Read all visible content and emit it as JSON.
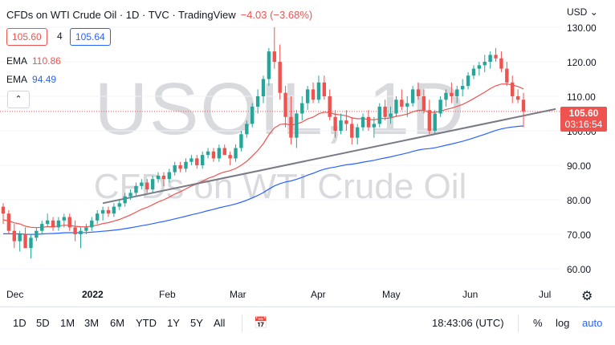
{
  "legend": {
    "title": "CFDs on WTI Crude Oil · 1D · TVC · TradingView",
    "change": "−4.03 (−3.68%)",
    "bid": "105.60",
    "spread": "4",
    "ask": "105.64",
    "ema1_label": "EMA",
    "ema1_value": "110.86",
    "ema2_label": "EMA",
    "ema2_value": "94.49",
    "collapse_icon": "chevron-up-icon"
  },
  "watermark": {
    "symbol": "USOIL, 1D",
    "description": "CFDs on WTI Crude Oil"
  },
  "price_scale": {
    "currency": "USD",
    "ticks": [
      "130.00",
      "120.00",
      "110.00",
      "100.00",
      "90.00",
      "80.00",
      "70.00",
      "60.00"
    ],
    "last_price": "105.60",
    "countdown": "03:16:54"
  },
  "time_scale": {
    "ticks": [
      "Dec",
      "2022",
      "Feb",
      "Mar",
      "Apr",
      "May",
      "Jun",
      "Jul"
    ]
  },
  "toolbar": {
    "timeframes": [
      "1D",
      "5D",
      "1M",
      "3M",
      "6M",
      "YTD",
      "1Y",
      "5Y",
      "All"
    ],
    "clock": "18:43:06 (UTC)",
    "percent": "%",
    "log": "log",
    "auto": "auto"
  },
  "colors": {
    "up": "#26a69a",
    "down": "#ef5350",
    "ema_fast": "#ef5350",
    "ema_slow": "#2962ff",
    "trendline": "#787b86",
    "accent": "#2962ff"
  },
  "chart_data": {
    "type": "candlestick",
    "ylim": [
      58,
      134
    ],
    "series": [
      {
        "name": "USOIL",
        "ohlc_approx": [
          [
            78,
            79,
            73,
            76
          ],
          [
            76,
            77,
            70,
            71
          ],
          [
            71,
            73,
            66,
            68
          ],
          [
            68,
            71,
            65,
            70
          ],
          [
            70,
            72,
            66,
            66
          ],
          [
            66,
            70,
            63,
            69
          ],
          [
            69,
            72,
            68,
            71
          ],
          [
            71,
            74,
            70,
            73
          ],
          [
            73,
            76,
            72,
            74
          ],
          [
            74,
            75,
            71,
            72
          ],
          [
            72,
            75,
            71,
            74
          ],
          [
            74,
            76,
            72,
            75
          ],
          [
            75,
            76,
            71,
            72
          ],
          [
            72,
            74,
            68,
            70
          ],
          [
            70,
            72,
            66,
            71
          ],
          [
            71,
            73,
            70,
            72
          ],
          [
            72,
            75,
            71,
            74
          ],
          [
            74,
            77,
            73,
            76
          ],
          [
            76,
            78,
            74,
            77
          ],
          [
            77,
            78,
            75,
            76
          ],
          [
            76,
            79,
            75,
            78
          ],
          [
            78,
            80,
            77,
            79
          ],
          [
            79,
            82,
            78,
            81
          ],
          [
            81,
            83,
            80,
            82
          ],
          [
            82,
            85,
            81,
            84
          ],
          [
            84,
            86,
            83,
            85
          ],
          [
            85,
            86,
            82,
            83
          ],
          [
            83,
            87,
            82,
            86
          ],
          [
            86,
            88,
            85,
            87
          ],
          [
            87,
            88,
            84,
            86
          ],
          [
            86,
            89,
            85,
            88
          ],
          [
            88,
            91,
            87,
            90
          ],
          [
            90,
            91,
            88,
            89
          ],
          [
            89,
            92,
            88,
            91
          ],
          [
            91,
            93,
            90,
            92
          ],
          [
            92,
            93,
            89,
            90
          ],
          [
            90,
            94,
            89,
            93
          ],
          [
            93,
            95,
            92,
            94
          ],
          [
            94,
            95,
            91,
            92
          ],
          [
            92,
            96,
            91,
            95
          ],
          [
            95,
            96,
            93,
            93
          ],
          [
            93,
            94,
            90,
            92
          ],
          [
            92,
            96,
            91,
            95
          ],
          [
            95,
            100,
            94,
            99
          ],
          [
            99,
            103,
            98,
            102
          ],
          [
            102,
            108,
            101,
            107
          ],
          [
            107,
            112,
            105,
            110
          ],
          [
            110,
            116,
            108,
            115
          ],
          [
            115,
            124,
            113,
            123
          ],
          [
            123,
            130,
            118,
            120
          ],
          [
            120,
            125,
            109,
            111
          ],
          [
            111,
            113,
            101,
            104
          ],
          [
            104,
            110,
            96,
            98
          ],
          [
            98,
            106,
            95,
            105
          ],
          [
            105,
            110,
            103,
            108
          ],
          [
            108,
            113,
            106,
            112
          ],
          [
            112,
            114,
            108,
            109
          ],
          [
            109,
            116,
            108,
            114
          ],
          [
            114,
            116,
            109,
            110
          ],
          [
            110,
            112,
            103,
            104
          ],
          [
            104,
            106,
            98,
            100
          ],
          [
            100,
            105,
            99,
            103
          ],
          [
            103,
            106,
            100,
            102
          ],
          [
            102,
            104,
            96,
            98
          ],
          [
            98,
            102,
            96,
            101
          ],
          [
            101,
            105,
            100,
            104
          ],
          [
            104,
            106,
            100,
            101
          ],
          [
            101,
            104,
            98,
            102
          ],
          [
            102,
            108,
            101,
            107
          ],
          [
            107,
            109,
            103,
            104
          ],
          [
            104,
            107,
            102,
            105
          ],
          [
            105,
            110,
            104,
            109
          ],
          [
            109,
            112,
            106,
            107
          ],
          [
            107,
            110,
            104,
            108
          ],
          [
            108,
            113,
            107,
            112
          ],
          [
            112,
            114,
            109,
            110
          ],
          [
            110,
            112,
            105,
            106
          ],
          [
            106,
            109,
            99,
            100
          ],
          [
            100,
            106,
            99,
            105
          ],
          [
            105,
            110,
            104,
            109
          ],
          [
            109,
            112,
            107,
            111
          ],
          [
            111,
            114,
            108,
            110
          ],
          [
            110,
            113,
            108,
            112
          ],
          [
            112,
            115,
            110,
            113
          ],
          [
            113,
            117,
            112,
            116
          ],
          [
            116,
            119,
            115,
            118
          ],
          [
            118,
            120,
            116,
            119
          ],
          [
            119,
            122,
            117,
            120
          ],
          [
            120,
            123,
            118,
            122
          ],
          [
            122,
            124,
            120,
            121
          ],
          [
            121,
            123,
            117,
            118
          ],
          [
            118,
            120,
            113,
            114
          ],
          [
            114,
            116,
            108,
            110
          ],
          [
            110,
            112,
            108,
            109
          ],
          [
            109,
            111,
            101,
            105.6
          ]
        ]
      },
      {
        "name": "EMA",
        "values_approx_start_end": [
          74,
          110.86
        ]
      },
      {
        "name": "EMA",
        "values_approx_start_end": [
          70,
          94.49
        ]
      }
    ]
  }
}
